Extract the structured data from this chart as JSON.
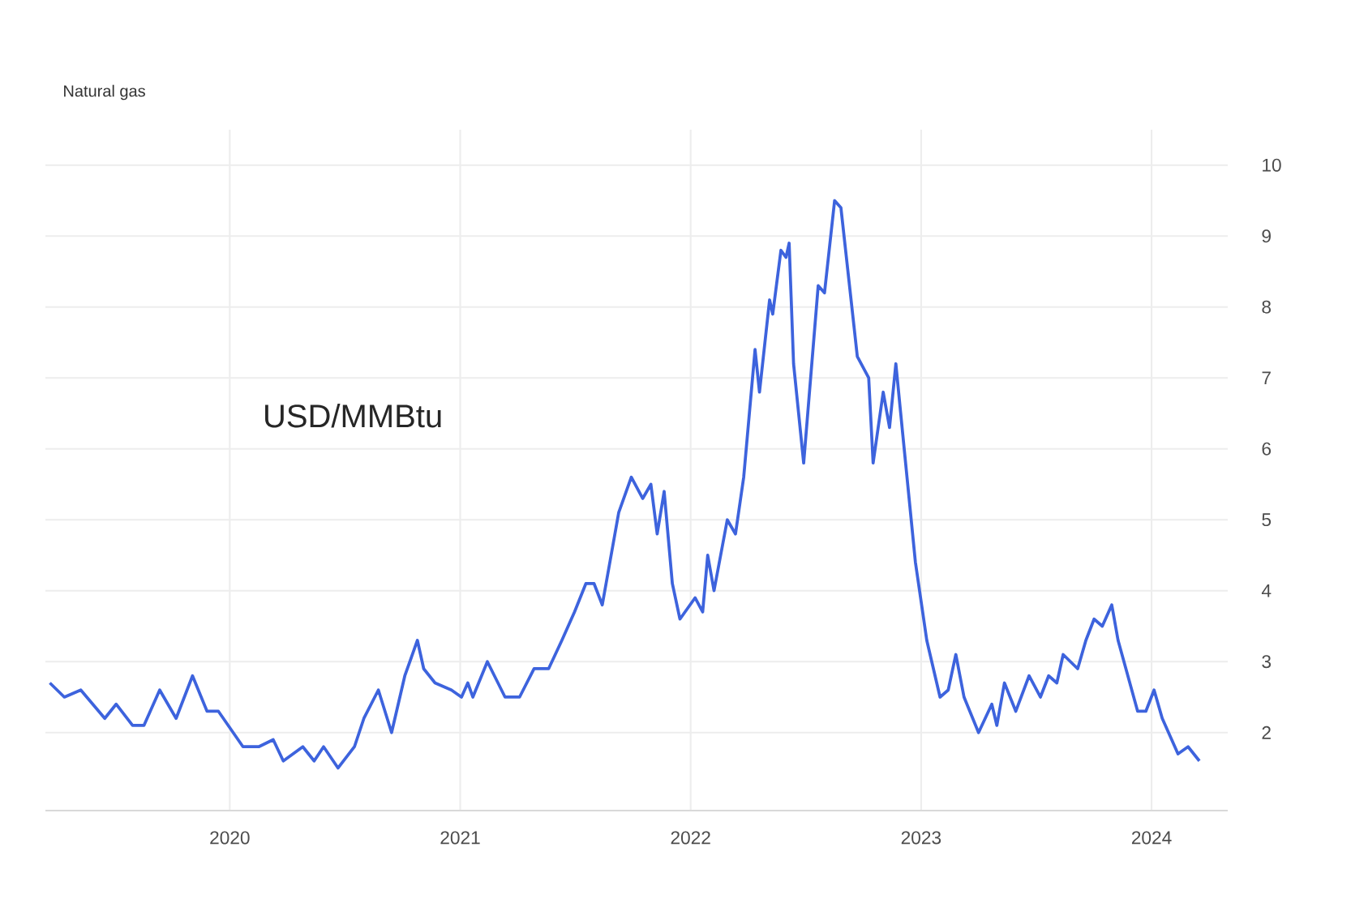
{
  "chart_data": {
    "type": "line",
    "title": "Natural gas",
    "annotations": [
      "USD/MMBtu"
    ],
    "x": [
      "2019-03-22",
      "2019-04-14",
      "2019-05-10",
      "2019-06-17",
      "2019-07-05",
      "2019-07-31",
      "2019-08-18",
      "2019-09-12",
      "2019-10-08",
      "2019-11-03",
      "2019-11-26",
      "2019-12-14",
      "2020-01-22",
      "2020-02-16",
      "2020-03-10",
      "2020-03-26",
      "2020-04-26",
      "2020-05-14",
      "2020-05-29",
      "2020-06-21",
      "2020-07-17",
      "2020-08-01",
      "2020-08-24",
      "2020-09-14",
      "2020-10-05",
      "2020-10-25",
      "2020-11-04",
      "2020-11-22",
      "2020-12-18",
      "2021-01-03",
      "2021-01-13",
      "2021-01-21",
      "2021-02-13",
      "2021-03-13",
      "2021-04-05",
      "2021-04-28",
      "2021-05-21",
      "2021-06-11",
      "2021-07-01",
      "2021-07-19",
      "2021-08-01",
      "2021-08-14",
      "2021-09-09",
      "2021-09-29",
      "2021-10-17",
      "2021-10-30",
      "2021-11-09",
      "2021-11-20",
      "2021-12-03",
      "2021-12-15",
      "2022-01-08",
      "2022-01-20",
      "2022-01-28",
      "2022-02-07",
      "2022-02-28",
      "2022-03-13",
      "2022-03-26",
      "2022-04-13",
      "2022-04-20",
      "2022-05-06",
      "2022-05-11",
      "2022-05-24",
      "2022-06-01",
      "2022-06-06",
      "2022-06-13",
      "2022-06-29",
      "2022-07-22",
      "2022-08-01",
      "2022-08-17",
      "2022-08-27",
      "2022-09-22",
      "2022-10-10",
      "2022-10-17",
      "2022-11-02",
      "2022-11-12",
      "2022-11-22",
      "2022-12-03",
      "2022-12-23",
      "2023-01-10",
      "2023-01-31",
      "2023-02-13",
      "2023-02-25",
      "2023-03-10",
      "2023-04-02",
      "2023-04-23",
      "2023-05-01",
      "2023-05-13",
      "2023-05-31",
      "2023-06-21",
      "2023-07-09",
      "2023-07-22",
      "2023-08-04",
      "2023-08-14",
      "2023-09-06",
      "2023-09-19",
      "2023-10-02",
      "2023-10-15",
      "2023-10-30",
      "2023-11-09",
      "2023-12-10",
      "2023-12-23",
      "2024-01-05",
      "2024-01-18",
      "2024-02-12",
      "2024-02-28",
      "2024-03-17"
    ],
    "series": [
      {
        "color": "#3d63dd",
        "values": [
          2.7,
          2.5,
          2.6,
          2.2,
          2.4,
          2.1,
          2.1,
          2.6,
          2.2,
          2.8,
          2.3,
          2.3,
          1.8,
          1.8,
          1.9,
          1.6,
          1.8,
          1.6,
          1.8,
          1.5,
          1.8,
          2.2,
          2.6,
          2.0,
          2.8,
          3.3,
          2.9,
          2.7,
          2.6,
          2.5,
          2.7,
          2.5,
          3.0,
          2.5,
          2.5,
          2.9,
          2.9,
          3.3,
          3.7,
          4.1,
          4.1,
          3.8,
          5.1,
          5.6,
          5.3,
          5.5,
          4.8,
          5.4,
          4.1,
          3.6,
          3.9,
          3.7,
          4.5,
          4.0,
          5.0,
          4.8,
          5.6,
          7.4,
          6.8,
          8.1,
          7.9,
          8.8,
          8.7,
          8.9,
          7.2,
          5.8,
          8.3,
          8.2,
          9.5,
          9.4,
          7.3,
          7.0,
          5.8,
          6.8,
          6.3,
          7.2,
          6.2,
          4.4,
          3.3,
          2.5,
          2.6,
          3.1,
          2.5,
          2.0,
          2.4,
          2.1,
          2.7,
          2.3,
          2.8,
          2.5,
          2.8,
          2.7,
          3.1,
          2.9,
          3.3,
          3.6,
          3.5,
          3.8,
          3.3,
          2.3,
          2.3,
          2.6,
          2.2,
          1.7,
          1.8,
          1.6
        ]
      }
    ],
    "xlim": [
      "2019-03-15",
      "2024-05-01"
    ],
    "xticks": [
      {
        "value": "2020-01-01",
        "label": "2020"
      },
      {
        "value": "2021-01-01",
        "label": "2021"
      },
      {
        "value": "2022-01-01",
        "label": "2022"
      },
      {
        "value": "2023-01-01",
        "label": "2023"
      },
      {
        "value": "2024-01-01",
        "label": "2024"
      }
    ],
    "ylim": [
      0.9,
      10.5
    ],
    "yticks": [
      2,
      3,
      4,
      5,
      6,
      7,
      8,
      9,
      10
    ],
    "grid": true
  }
}
